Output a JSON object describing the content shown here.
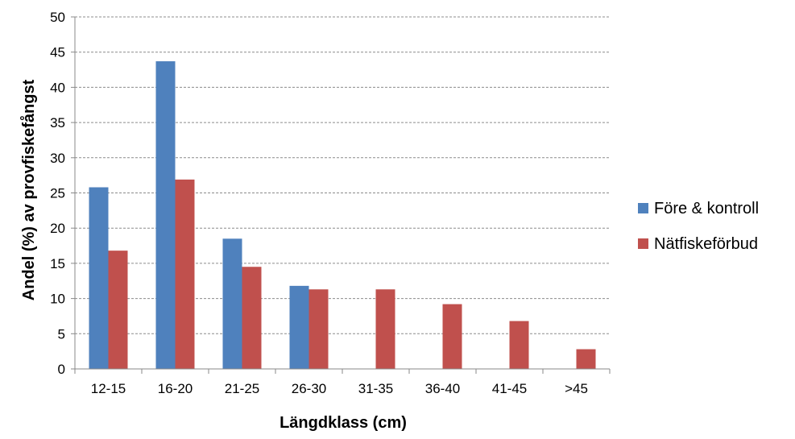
{
  "chart_data": {
    "type": "bar",
    "title": "",
    "xlabel": "Längdklass (cm)",
    "ylabel": "Andel (%) av provfiskefångst",
    "ylim": [
      0,
      50
    ],
    "yticks": [
      0,
      5,
      10,
      15,
      20,
      25,
      30,
      35,
      40,
      45,
      50
    ],
    "grid": "horizontal dashed",
    "legend": "right",
    "categories": [
      "12-15",
      "16-20",
      "21-25",
      "26-30",
      "31-35",
      "36-40",
      "41-45",
      ">45"
    ],
    "series": [
      {
        "name": "Före & kontroll",
        "color": "#4f81bd",
        "values": [
          25.8,
          43.7,
          18.5,
          11.8,
          0,
          0,
          0,
          0
        ]
      },
      {
        "name": "Nätfiskeförbud",
        "color": "#c0504d",
        "values": [
          16.8,
          26.9,
          14.5,
          11.3,
          11.3,
          9.2,
          6.8,
          2.8
        ]
      }
    ]
  }
}
